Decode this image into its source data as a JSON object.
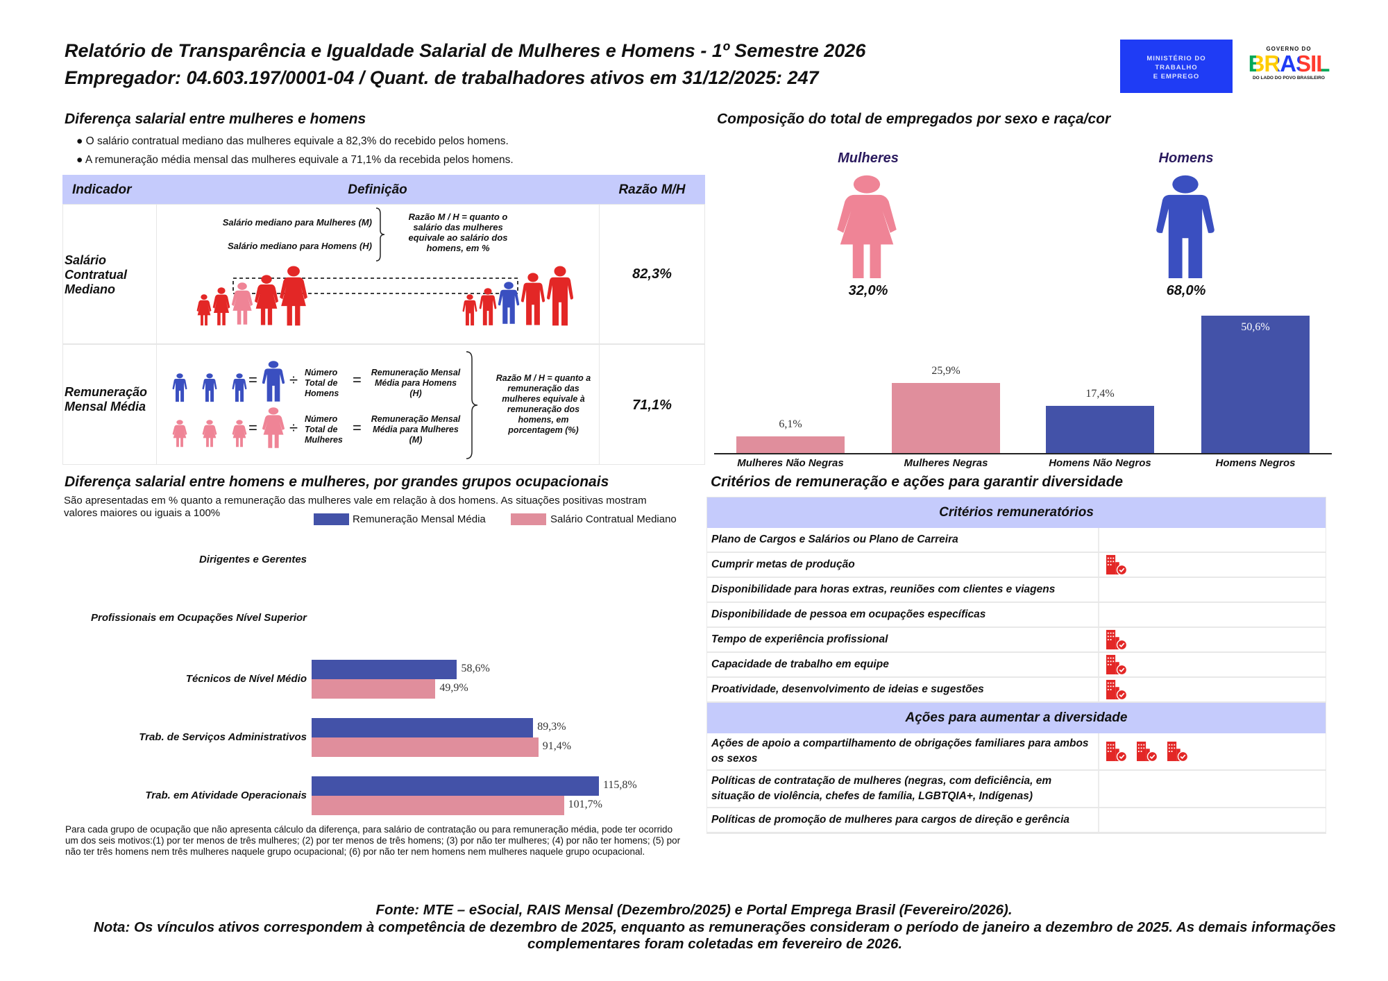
{
  "header": {
    "title": "Relatório de Transparência e Igualdade Salarial de Mulheres e Homens - 1º Semestre 2026",
    "subtitle": "Empregador: 04.603.197/0001-04 / Quant. de trabalhadores ativos em 31/12/2025: 247",
    "logo_ministry": [
      "MINISTÉRIO DO",
      "TRABALHO",
      "E EMPREGO"
    ],
    "logo_gov_top": "GOVERNO DO",
    "logo_gov_word": "BRASIL",
    "logo_gov_bottom": "DO LADO DO POVO BRASILEIRO"
  },
  "salary_gap": {
    "heading": "Diferença salarial entre mulheres e homens",
    "bullets": [
      "● O salário contratual mediano das mulheres equivale a 82,3% do recebido pelos homens.",
      "● A remuneração média mensal das mulheres equivale a 71,1% da recebida pelos homens."
    ],
    "table": {
      "headers": [
        "Indicador",
        "Definição",
        "Razão M/H"
      ],
      "rows": [
        {
          "indicator": "Salário Contratual Mediano",
          "def_m": "Salário mediano para Mulheres (M)",
          "def_h": "Salário mediano para Homens (H)",
          "explanation": "Razão M / H = quanto o salário das mulheres equivale ao salário dos homens, em %",
          "ratio": "82,3%"
        },
        {
          "indicator": "Remuneração Mensal Média",
          "count_h": "Número Total de Homens",
          "result_h": "Remuneração Mensal Média para Homens (H)",
          "count_m": "Número Total de Mulheres",
          "result_m": "Remuneração Mensal Média para Mulheres (M)",
          "eq": "=",
          "div": "÷",
          "explanation": "Razão M / H = quanto a remuneração das mulheres equivale à remuneração dos homens, em porcentagem (%)",
          "ratio": "71,1%"
        }
      ]
    }
  },
  "composition": {
    "heading": "Composição do total de empregados por sexo e raça/cor",
    "women_label": "Mulheres",
    "men_label": "Homens",
    "women_pct": "32,0%",
    "men_pct": "68,0%"
  },
  "occupations": {
    "heading": "Diferença salarial entre homens e mulheres, por grandes grupos ocupacionais",
    "description": "São apresentadas em % quanto a remuneração das mulheres vale em relação à dos homens. As situações positivas mostram valores maiores ou iguais a 100%",
    "footnote": "Para cada grupo de ocupação que não apresenta cálculo da diferença, para salário de contratação ou para remuneração média, pode ter ocorrido um dos seis motivos:(1) por ter menos de três mulheres; (2) por ter menos de três homens; (3) por não ter mulheres; (4) por não ter homens; (5) por não ter três homens nem três mulheres naquele grupo ocupacional; (6) por não ter nem homens nem mulheres naquele grupo ocupacional."
  },
  "criteria": {
    "heading": "Critérios de remuneração e ações para garantir diversidade",
    "section1": "Critérios remuneratórios",
    "rows1": [
      {
        "label": "Plano de Cargos e Salários ou Plano de Carreira",
        "icons": 0
      },
      {
        "label": "Cumprir metas de produção",
        "icons": 1
      },
      {
        "label": "Disponibilidade para horas extras, reuniões com clientes e viagens",
        "icons": 0
      },
      {
        "label": "Disponibilidade de pessoa em ocupações específicas",
        "icons": 0
      },
      {
        "label": "Tempo de experiência profissional",
        "icons": 1
      },
      {
        "label": "Capacidade de trabalho em equipe",
        "icons": 1
      },
      {
        "label": "Proatividade, desenvolvimento de ideias e sugestões",
        "icons": 1
      }
    ],
    "section2": "Ações para aumentar a diversidade",
    "rows2": [
      {
        "label": "Ações de apoio a compartilhamento de obrigações familiares para ambos os sexos",
        "icons": 3
      },
      {
        "label": "Políticas de contratação de mulheres (negras, com deficiência, em situação de violência, chefes de família, LGBTQIA+, Indígenas)",
        "icons": 0
      },
      {
        "label": "Políticas de promoção de mulheres para cargos de direção e gerência",
        "icons": 0
      }
    ],
    "icon_name": "building-check-icon"
  },
  "footer": {
    "source": "Fonte: MTE – eSocial, RAIS Mensal (Dezembro/2025) e Portal Emprega Brasil (Fevereiro/2026).",
    "note": "Nota: Os vínculos ativos correspondem à competência de dezembro de 2025, enquanto as remunerações consideram o período de janeiro a dezembro de 2025. As demais informações complementares foram coletadas em fevereiro de 2026."
  },
  "colors": {
    "blue": "#4352a8",
    "pink": "#e08e9c",
    "red": "#e32726",
    "header": "#c5cbfc",
    "man": "#3a4fc0",
    "woman": "#ef8496"
  },
  "chart_data": [
    {
      "type": "bar",
      "title": "Composição do total de empregados por sexo e raça/cor",
      "categories": [
        "Mulheres Não Negras",
        "Mulheres Negras",
        "Homens Não Negros",
        "Homens Negros"
      ],
      "values": [
        6.1,
        25.9,
        17.4,
        50.6
      ],
      "labels": [
        "6,1%",
        "25,9%",
        "17,4%",
        "50,6%"
      ],
      "bar_colors": [
        "#e08e9c",
        "#e08e9c",
        "#4352a8",
        "#4352a8"
      ],
      "ylim": [
        0,
        50.6
      ],
      "grid": false
    },
    {
      "type": "bar",
      "orientation": "horizontal",
      "title": "Diferença salarial entre homens e mulheres, por grandes grupos ocupacionais",
      "categories": [
        "Dirigentes e Gerentes",
        "Profissionais em Ocupações Nível Superior",
        "Técnicos de Nível Médio",
        "Trab. de Serviços Administrativos",
        "Trab. em Atividade Operacionais"
      ],
      "series": [
        {
          "name": "Remuneração Mensal Média",
          "color": "#4352a8",
          "values": [
            null,
            null,
            58.6,
            89.3,
            115.8
          ],
          "labels": [
            null,
            null,
            "58,6%",
            "89,3%",
            "115,8%"
          ]
        },
        {
          "name": "Salário Contratual Mediano",
          "color": "#e08e9c",
          "values": [
            null,
            null,
            49.9,
            91.4,
            101.7
          ],
          "labels": [
            null,
            null,
            "49,9%",
            "91,4%",
            "101,7%"
          ]
        }
      ],
      "legend": "top-right",
      "grid": false
    }
  ]
}
